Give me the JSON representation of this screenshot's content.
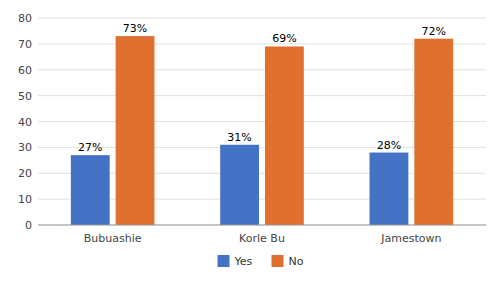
{
  "chart_data": {
    "type": "bar",
    "categories": [
      "Bubuashie",
      "Korle Bu",
      "Jamestown"
    ],
    "series": [
      {
        "name": "Yes",
        "color": "#4472C4",
        "values": [
          27,
          31,
          28
        ],
        "value_labels": [
          "27%",
          "31%",
          "28%"
        ]
      },
      {
        "name": "No",
        "color": "#E07030",
        "values": [
          73,
          69,
          72
        ],
        "value_labels": [
          "73%",
          "69%",
          "72%"
        ]
      }
    ],
    "ylim": [
      0,
      80
    ],
    "yticks": [
      0,
      10,
      20,
      30,
      40,
      50,
      60,
      70,
      80
    ],
    "grid": true,
    "legend": "bottom",
    "data_labels": true
  }
}
